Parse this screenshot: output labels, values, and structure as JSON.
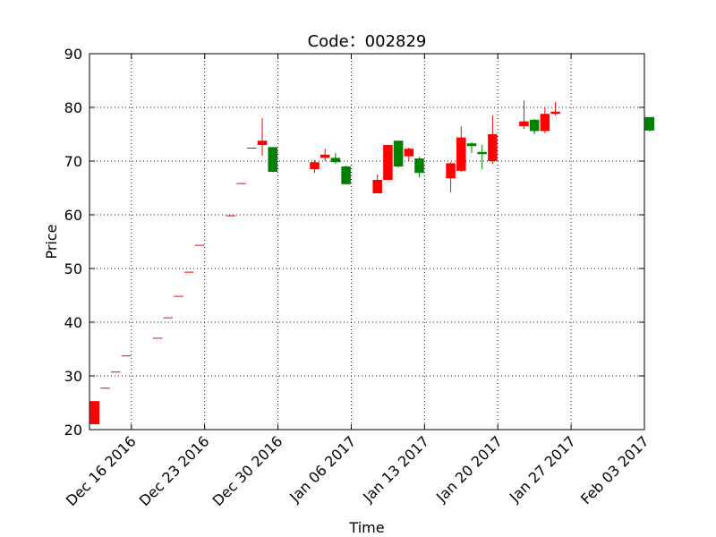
{
  "chart_data": {
    "type": "candlestick",
    "title": "Code：002829",
    "xlabel": "Time",
    "ylabel": "Price",
    "ylim": [
      20,
      90
    ],
    "xlim": [
      "2016-12-12",
      "2017-02-03"
    ],
    "yticks": [
      20,
      30,
      40,
      50,
      60,
      70,
      80,
      90
    ],
    "xticks": [
      {
        "date": "2016-12-16",
        "label": "Dec 16 2016"
      },
      {
        "date": "2016-12-23",
        "label": "Dec 23 2016"
      },
      {
        "date": "2016-12-30",
        "label": "Dec 30 2016"
      },
      {
        "date": "2017-01-06",
        "label": "Jan 06 2017"
      },
      {
        "date": "2017-01-13",
        "label": "Jan 13 2017"
      },
      {
        "date": "2017-01-20",
        "label": "Jan 20 2017"
      },
      {
        "date": "2017-01-27",
        "label": "Jan 27 2017"
      },
      {
        "date": "2017-02-03",
        "label": "Feb 03 2017"
      }
    ],
    "grid": true,
    "colors": {
      "up": "#ff0000",
      "down": "#008000"
    },
    "candles": [
      {
        "date": "2016-12-12",
        "open": 21.0,
        "close": 25.3,
        "high": 25.3,
        "low": 21.0
      },
      {
        "date": "2016-12-13",
        "open": 27.8,
        "close": 27.8,
        "high": 27.8,
        "low": 27.8
      },
      {
        "date": "2016-12-14",
        "open": 30.8,
        "close": 30.8,
        "high": 30.8,
        "low": 30.8
      },
      {
        "date": "2016-12-15",
        "open": 33.8,
        "close": 33.8,
        "high": 33.8,
        "low": 33.8
      },
      {
        "date": "2016-12-18",
        "open": 37.1,
        "close": 37.1,
        "high": 37.1,
        "low": 37.1
      },
      {
        "date": "2016-12-19",
        "open": 40.9,
        "close": 40.9,
        "high": 40.9,
        "low": 40.9
      },
      {
        "date": "2016-12-20",
        "open": 44.9,
        "close": 44.9,
        "high": 44.9,
        "low": 44.9
      },
      {
        "date": "2016-12-21",
        "open": 49.4,
        "close": 49.4,
        "high": 49.4,
        "low": 49.4
      },
      {
        "date": "2016-12-22",
        "open": 54.4,
        "close": 54.4,
        "high": 54.4,
        "low": 54.4
      },
      {
        "date": "2016-12-25",
        "open": 59.9,
        "close": 59.9,
        "high": 59.9,
        "low": 59.9
      },
      {
        "date": "2016-12-26",
        "open": 65.9,
        "close": 65.9,
        "high": 65.9,
        "low": 65.9
      },
      {
        "date": "2016-12-27",
        "open": 72.5,
        "close": 72.5,
        "high": 72.5,
        "low": 72.5
      },
      {
        "date": "2016-12-28",
        "open": 73.0,
        "close": 73.8,
        "high": 78.0,
        "low": 71.0
      },
      {
        "date": "2016-12-29",
        "open": 72.6,
        "close": 68.0,
        "high": 72.6,
        "low": 68.0
      },
      {
        "date": "2017-01-02",
        "open": 68.5,
        "close": 69.8,
        "high": 70.2,
        "low": 67.8
      },
      {
        "date": "2017-01-03",
        "open": 70.6,
        "close": 71.2,
        "high": 72.3,
        "low": 70.0
      },
      {
        "date": "2017-01-04",
        "open": 70.6,
        "close": 69.8,
        "high": 71.5,
        "low": 69.5
      },
      {
        "date": "2017-01-05",
        "open": 69.0,
        "close": 65.7,
        "high": 69.2,
        "low": 65.7
      },
      {
        "date": "2017-01-08",
        "open": 64.0,
        "close": 66.5,
        "high": 67.5,
        "low": 64.0
      },
      {
        "date": "2017-01-09",
        "open": 66.5,
        "close": 73.0,
        "high": 73.0,
        "low": 66.5
      },
      {
        "date": "2017-01-10",
        "open": 73.8,
        "close": 69.0,
        "high": 73.8,
        "low": 68.8
      },
      {
        "date": "2017-01-11",
        "open": 70.9,
        "close": 72.3,
        "high": 72.5,
        "low": 70.0
      },
      {
        "date": "2017-01-12",
        "open": 70.5,
        "close": 67.8,
        "high": 70.8,
        "low": 67.0
      },
      {
        "date": "2017-01-15",
        "open": 66.8,
        "close": 69.6,
        "high": 69.8,
        "low": 64.2
      },
      {
        "date": "2017-01-16",
        "open": 68.2,
        "close": 74.4,
        "high": 76.5,
        "low": 68.0
      },
      {
        "date": "2017-01-17",
        "open": 73.3,
        "close": 72.8,
        "high": 73.5,
        "low": 71.5
      },
      {
        "date": "2017-01-18",
        "open": 71.7,
        "close": 71.3,
        "high": 73.0,
        "low": 68.5
      },
      {
        "date": "2017-01-19",
        "open": 70.0,
        "close": 75.0,
        "high": 78.5,
        "low": 69.5
      },
      {
        "date": "2017-01-22",
        "open": 76.5,
        "close": 77.4,
        "high": 81.3,
        "low": 76.0
      },
      {
        "date": "2017-01-23",
        "open": 77.7,
        "close": 75.6,
        "high": 77.8,
        "low": 75.0
      },
      {
        "date": "2017-01-24",
        "open": 75.6,
        "close": 78.8,
        "high": 80.0,
        "low": 75.2
      },
      {
        "date": "2017-01-25",
        "open": 78.8,
        "close": 79.2,
        "high": 81.0,
        "low": 78.5
      },
      {
        "date": "2017-02-03",
        "open": 78.2,
        "close": 75.7,
        "high": 78.2,
        "low": 75.5
      }
    ]
  }
}
